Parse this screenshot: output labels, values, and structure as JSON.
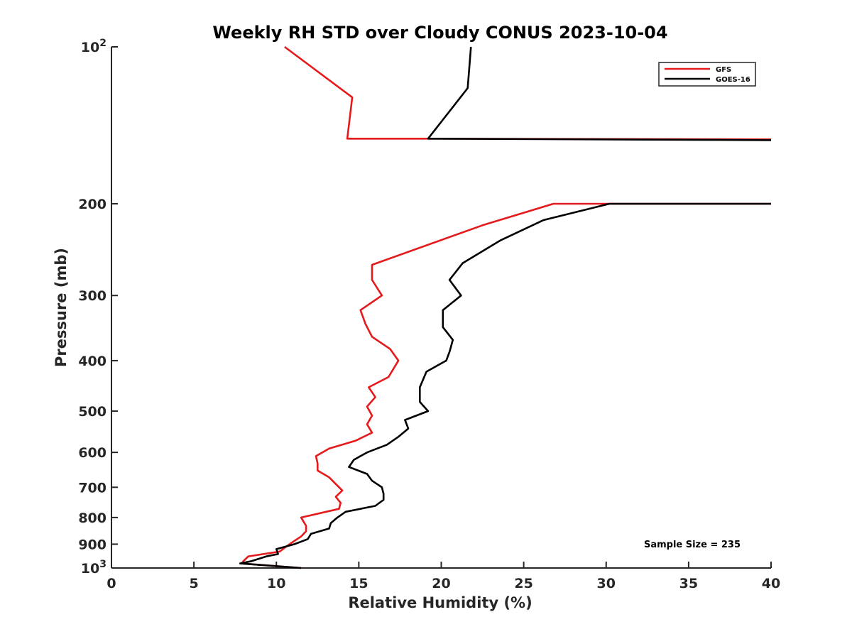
{
  "chart_data": {
    "type": "line",
    "title": "Weekly RH STD over Cloudy CONUS 2023-10-04",
    "xlabel": "Relative Humidity (%)",
    "ylabel": "Pressure (mb)",
    "xlim": [
      0,
      40
    ],
    "ylim": [
      100,
      1000
    ],
    "y_scale": "log",
    "y_reversed": true,
    "x_ticks": [
      0,
      5,
      10,
      15,
      20,
      25,
      30,
      35,
      40
    ],
    "y_ticks": [
      {
        "value": 100,
        "label": "10",
        "sup": "2"
      },
      {
        "value": 200,
        "label": "200",
        "sup": ""
      },
      {
        "value": 300,
        "label": "300",
        "sup": ""
      },
      {
        "value": 400,
        "label": "400",
        "sup": ""
      },
      {
        "value": 500,
        "label": "500",
        "sup": ""
      },
      {
        "value": 600,
        "label": "600",
        "sup": ""
      },
      {
        "value": 700,
        "label": "700",
        "sup": ""
      },
      {
        "value": 800,
        "label": "800",
        "sup": ""
      },
      {
        "value": 900,
        "label": "900",
        "sup": ""
      },
      {
        "value": 1000,
        "label": "10",
        "sup": "3"
      }
    ],
    "grid": false,
    "legend_position": "top-right",
    "annotation": "Sample Size = 235",
    "series": [
      {
        "name": "GFS",
        "color": "#e41a1c",
        "points": [
          [
            10.5,
            100
          ],
          [
            14.6,
            125
          ],
          [
            14.3,
            150
          ],
          [
            19.2,
            150
          ],
          [
            40,
            150.5
          ],
          [
            null,
            null
          ],
          [
            40,
            200
          ],
          [
            26.8,
            200
          ],
          [
            22.5,
            220
          ],
          [
            15.8,
            262
          ],
          [
            15.8,
            280
          ],
          [
            16.4,
            300
          ],
          [
            15.1,
            320
          ],
          [
            15.4,
            340
          ],
          [
            15.8,
            360
          ],
          [
            16.9,
            380
          ],
          [
            17.4,
            400
          ],
          [
            16.8,
            430
          ],
          [
            15.6,
            450
          ],
          [
            16.0,
            470
          ],
          [
            15.5,
            490
          ],
          [
            15.8,
            510
          ],
          [
            15.5,
            530
          ],
          [
            15.8,
            550
          ],
          [
            14.8,
            570
          ],
          [
            13.2,
            590
          ],
          [
            12.4,
            610
          ],
          [
            12.5,
            630
          ],
          [
            12.5,
            650
          ],
          [
            13.2,
            670
          ],
          [
            13.6,
            690
          ],
          [
            14.0,
            710
          ],
          [
            13.6,
            730
          ],
          [
            13.9,
            750
          ],
          [
            13.8,
            770
          ],
          [
            11.5,
            800
          ],
          [
            11.8,
            830
          ],
          [
            11.8,
            850
          ],
          [
            11.5,
            870
          ],
          [
            10.8,
            900
          ],
          [
            10.2,
            930
          ],
          [
            8.3,
            950
          ],
          [
            8.0,
            970
          ],
          [
            7.9,
            980
          ],
          [
            11.5,
            1000
          ]
        ]
      },
      {
        "name": "GOES-16",
        "color": "#000000",
        "points": [
          [
            21.8,
            100
          ],
          [
            21.6,
            120
          ],
          [
            19.2,
            150
          ],
          [
            40,
            151
          ],
          [
            null,
            null
          ],
          [
            40,
            200
          ],
          [
            30.2,
            200
          ],
          [
            26.2,
            215
          ],
          [
            23.6,
            235
          ],
          [
            21.3,
            260
          ],
          [
            20.5,
            280
          ],
          [
            21.2,
            300
          ],
          [
            20.1,
            320
          ],
          [
            20.1,
            345
          ],
          [
            20.7,
            365
          ],
          [
            20.5,
            385
          ],
          [
            20.3,
            400
          ],
          [
            19.1,
            420
          ],
          [
            18.7,
            450
          ],
          [
            18.7,
            480
          ],
          [
            19.2,
            500
          ],
          [
            17.8,
            520
          ],
          [
            18.0,
            540
          ],
          [
            17.4,
            560
          ],
          [
            16.7,
            580
          ],
          [
            15.5,
            600
          ],
          [
            14.7,
            620
          ],
          [
            14.4,
            640
          ],
          [
            15.5,
            660
          ],
          [
            15.8,
            680
          ],
          [
            16.4,
            700
          ],
          [
            16.5,
            720
          ],
          [
            16.5,
            740
          ],
          [
            16.0,
            760
          ],
          [
            14.2,
            780
          ],
          [
            13.7,
            800
          ],
          [
            13.3,
            820
          ],
          [
            13.2,
            840
          ],
          [
            12.1,
            860
          ],
          [
            11.9,
            880
          ],
          [
            11.1,
            900
          ],
          [
            10.0,
            920
          ],
          [
            10.1,
            940
          ],
          [
            9.4,
            950
          ],
          [
            8.5,
            970
          ],
          [
            7.8,
            980
          ],
          [
            11.5,
            1000
          ]
        ]
      }
    ]
  }
}
